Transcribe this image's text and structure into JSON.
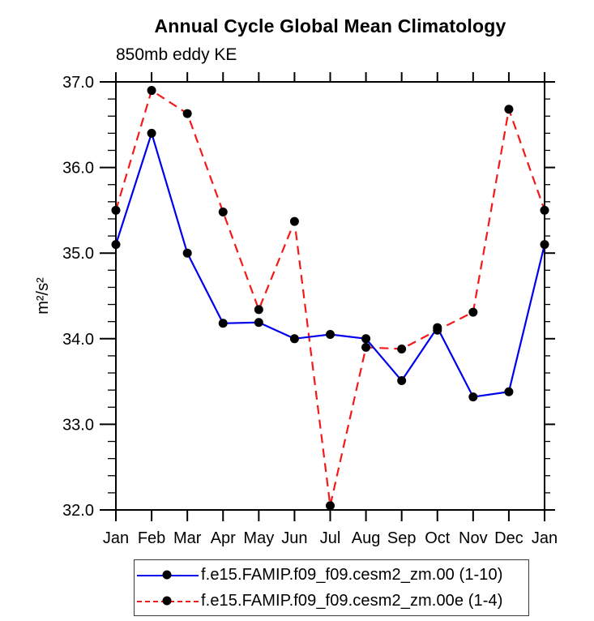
{
  "title": "Annual Cycle Global Mean Climatology",
  "subtitle": "850mb eddy KE",
  "chart_data": {
    "type": "line",
    "title": "Annual Cycle Global Mean Climatology",
    "left_string": "850mb eddy KE",
    "xlabel": "",
    "ylabel": "m²/s²",
    "categories": [
      "Jan",
      "Feb",
      "Mar",
      "Apr",
      "May",
      "Jun",
      "Jul",
      "Aug",
      "Sep",
      "Oct",
      "Nov",
      "Dec",
      "Jan"
    ],
    "series": [
      {
        "name": "f.e15.FAMIP.f09_f09.cesm2_zm.00 (1-10)",
        "color": "#0000ee",
        "style": "solid",
        "marker": "circle",
        "marker_color": "#000000",
        "values": [
          35.1,
          36.4,
          35.0,
          34.18,
          34.19,
          34.0,
          34.05,
          34.0,
          33.51,
          34.13,
          33.32,
          33.38,
          35.1
        ]
      },
      {
        "name": "f.e15.FAMIP.f09_f09.cesm2_zm.00e (1-4)",
        "color": "#f51818",
        "style": "dashed",
        "marker": "circle",
        "marker_color": "#000000",
        "values": [
          35.5,
          36.9,
          36.63,
          35.48,
          34.34,
          35.37,
          32.05,
          33.9,
          33.88,
          34.1,
          34.31,
          36.68,
          35.5
        ]
      }
    ],
    "ylim": [
      32.0,
      37.0
    ],
    "ytick_major": 1.0,
    "ytick_minor": 0.2,
    "ytick_labels": [
      "32.0",
      "33.0",
      "34.0",
      "35.0",
      "36.0",
      "37.0"
    ],
    "grid": false,
    "legend_position": "bottom",
    "axis_color": "#000000"
  }
}
